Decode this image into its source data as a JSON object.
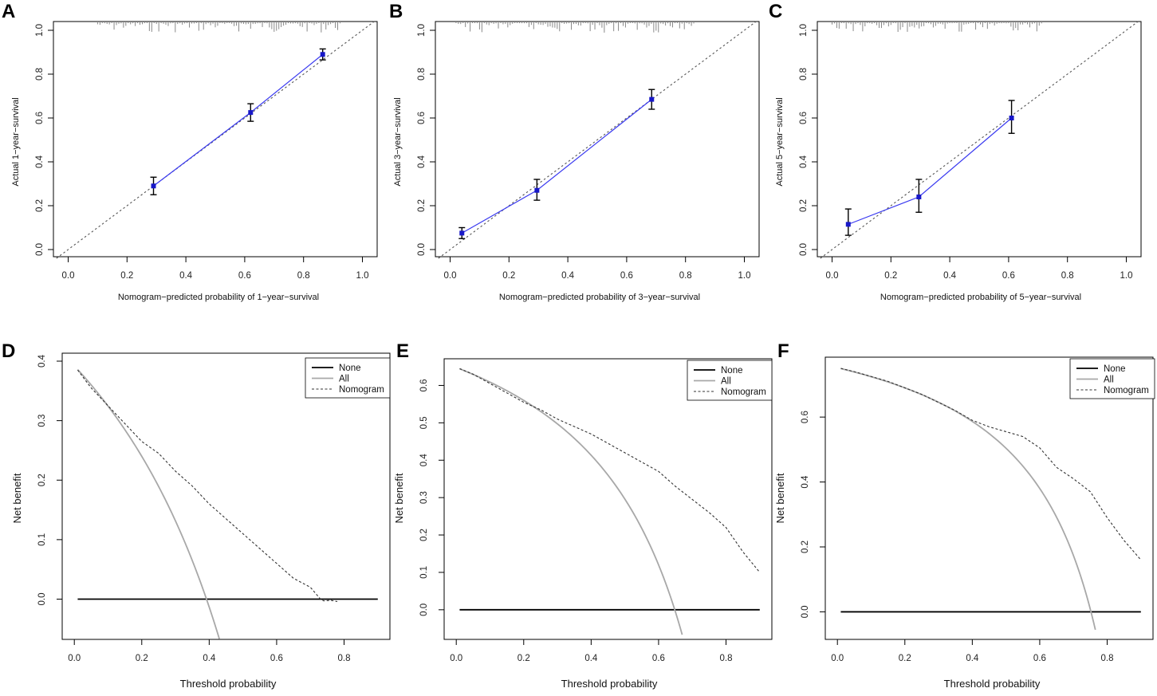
{
  "figure": {
    "background": "#ffffff"
  },
  "colors": {
    "calibration_line": "#3a3af0",
    "calibration_point": "#1818c8",
    "errorbar": "#000000",
    "ideal_diagonal": "#555555",
    "rug": "#888888",
    "none_line": "#000000",
    "all_line": "#a8a8a8",
    "nomogram_line": "#333333"
  },
  "chart_data": [
    {
      "panel": "A",
      "type": "scatter",
      "title": "",
      "xlabel": "Nomogram−predicted probability of 1−year−survival",
      "ylabel": "Actual 1−year−survival",
      "xlim": [
        0.0,
        1.0
      ],
      "ylim": [
        0.0,
        1.0
      ],
      "x_ticks": [
        "0.0",
        "0.2",
        "0.4",
        "0.6",
        "0.8",
        "1.0"
      ],
      "y_ticks": [
        "0.0",
        "0.2",
        "0.4",
        "0.6",
        "0.8",
        "1.0"
      ],
      "reference_line": "diagonal",
      "points": [
        {
          "x": 0.29,
          "y": 0.29,
          "lower": 0.25,
          "upper": 0.33
        },
        {
          "x": 0.62,
          "y": 0.625,
          "lower": 0.585,
          "upper": 0.665
        },
        {
          "x": 0.865,
          "y": 0.89,
          "lower": 0.865,
          "upper": 0.915
        }
      ],
      "rug_range": [
        0.1,
        0.93
      ]
    },
    {
      "panel": "B",
      "type": "scatter",
      "title": "",
      "xlabel": "Nomogram−predicted probability of 3−year−survival",
      "ylabel": "Actual 3−year−survival",
      "xlim": [
        0.0,
        1.0
      ],
      "ylim": [
        0.0,
        1.0
      ],
      "x_ticks": [
        "0.0",
        "0.2",
        "0.4",
        "0.6",
        "0.8",
        "1.0"
      ],
      "y_ticks": [
        "0.0",
        "0.2",
        "0.4",
        "0.6",
        "0.8",
        "1.0"
      ],
      "reference_line": "diagonal",
      "points": [
        {
          "x": 0.04,
          "y": 0.075,
          "lower": 0.05,
          "upper": 0.1
        },
        {
          "x": 0.295,
          "y": 0.27,
          "lower": 0.225,
          "upper": 0.32
        },
        {
          "x": 0.685,
          "y": 0.685,
          "lower": 0.64,
          "upper": 0.73
        }
      ],
      "rug_range": [
        0.02,
        0.83
      ]
    },
    {
      "panel": "C",
      "type": "scatter",
      "title": "",
      "xlabel": "Nomogram−predicted probability of 5−year−survival",
      "ylabel": "Actual 5−year−survival",
      "xlim": [
        0.0,
        1.0
      ],
      "ylim": [
        0.0,
        1.0
      ],
      "x_ticks": [
        "0.0",
        "0.2",
        "0.4",
        "0.6",
        "0.8",
        "1.0"
      ],
      "y_ticks": [
        "0.0",
        "0.2",
        "0.4",
        "0.6",
        "0.8",
        "1.0"
      ],
      "reference_line": "diagonal",
      "points": [
        {
          "x": 0.055,
          "y": 0.115,
          "lower": 0.065,
          "upper": 0.185
        },
        {
          "x": 0.295,
          "y": 0.24,
          "lower": 0.17,
          "upper": 0.32
        },
        {
          "x": 0.61,
          "y": 0.6,
          "lower": 0.53,
          "upper": 0.68
        }
      ],
      "rug_range": [
        0.0,
        0.72
      ]
    },
    {
      "panel": "D",
      "type": "line",
      "title": "",
      "xlabel": "Threshold probability",
      "ylabel": "Net benefit",
      "xlim": [
        0.0,
        0.9
      ],
      "ylim": [
        -0.065,
        0.4
      ],
      "x_ticks": [
        "0.0",
        "0.2",
        "0.4",
        "0.6",
        "0.8"
      ],
      "y_ticks": [
        "0.0",
        "0.1",
        "0.2",
        "0.3",
        "0.4"
      ],
      "legend_position": "top-right",
      "series": [
        {
          "name": "None",
          "style": "solid-black",
          "x": [
            0.01,
            0.9
          ],
          "values": [
            0.0,
            0.0
          ]
        },
        {
          "name": "All",
          "style": "solid-gray",
          "prevalence": 0.392,
          "x_end": 0.43
        },
        {
          "name": "Nomogram",
          "style": "dashed",
          "x": [
            0.01,
            0.05,
            0.1,
            0.15,
            0.2,
            0.25,
            0.3,
            0.35,
            0.4,
            0.45,
            0.5,
            0.55,
            0.6,
            0.65,
            0.7,
            0.73,
            0.74,
            0.76,
            0.78
          ],
          "values": [
            0.385,
            0.355,
            0.325,
            0.295,
            0.265,
            0.245,
            0.215,
            0.19,
            0.16,
            0.135,
            0.11,
            0.085,
            0.06,
            0.035,
            0.02,
            0.0,
            -0.003,
            -0.002,
            -0.004
          ]
        }
      ]
    },
    {
      "panel": "E",
      "type": "line",
      "title": "",
      "xlabel": "Threshold probability",
      "ylabel": "Net benefit",
      "xlim": [
        0.0,
        0.9
      ],
      "ylim": [
        -0.075,
        0.65
      ],
      "x_ticks": [
        "0.0",
        "0.2",
        "0.4",
        "0.6",
        "0.8"
      ],
      "y_ticks": [
        "0.0",
        "0.1",
        "0.2",
        "0.3",
        "0.4",
        "0.5",
        "0.6"
      ],
      "legend_position": "top-right",
      "series": [
        {
          "name": "None",
          "style": "solid-black",
          "x": [
            0.01,
            0.9
          ],
          "values": [
            0.0,
            0.0
          ]
        },
        {
          "name": "All",
          "style": "solid-gray",
          "prevalence": 0.648,
          "x_end": 0.672
        },
        {
          "name": "Nomogram",
          "style": "dashed",
          "x": [
            0.01,
            0.05,
            0.1,
            0.15,
            0.2,
            0.25,
            0.3,
            0.35,
            0.4,
            0.45,
            0.5,
            0.55,
            0.6,
            0.65,
            0.7,
            0.75,
            0.8,
            0.85,
            0.9
          ],
          "values": [
            0.645,
            0.63,
            0.605,
            0.58,
            0.555,
            0.535,
            0.51,
            0.49,
            0.47,
            0.445,
            0.42,
            0.395,
            0.37,
            0.33,
            0.295,
            0.26,
            0.22,
            0.155,
            0.1
          ]
        }
      ]
    },
    {
      "panel": "F",
      "type": "line",
      "title": "",
      "xlabel": "Threshold probability",
      "ylabel": "Net benefit",
      "xlim": [
        0.0,
        0.9
      ],
      "ylim": [
        -0.08,
        0.76
      ],
      "x_ticks": [
        "0.0",
        "0.2",
        "0.4",
        "0.6",
        "0.8"
      ],
      "y_ticks": [
        "0.0",
        "0.2",
        "0.4",
        "0.6"
      ],
      "legend_position": "top-right",
      "series": [
        {
          "name": "None",
          "style": "solid-black",
          "x": [
            0.01,
            0.9
          ],
          "values": [
            0.0,
            0.0
          ]
        },
        {
          "name": "All",
          "style": "solid-gray",
          "prevalence": 0.752,
          "x_end": 0.768
        },
        {
          "name": "Nomogram",
          "style": "dashed",
          "x": [
            0.01,
            0.05,
            0.1,
            0.15,
            0.2,
            0.25,
            0.3,
            0.35,
            0.4,
            0.45,
            0.5,
            0.55,
            0.6,
            0.65,
            0.7,
            0.75,
            0.8,
            0.85,
            0.9
          ],
          "values": [
            0.75,
            0.74,
            0.725,
            0.71,
            0.69,
            0.67,
            0.645,
            0.62,
            0.59,
            0.57,
            0.555,
            0.54,
            0.505,
            0.445,
            0.41,
            0.37,
            0.29,
            0.22,
            0.16
          ]
        }
      ]
    }
  ]
}
